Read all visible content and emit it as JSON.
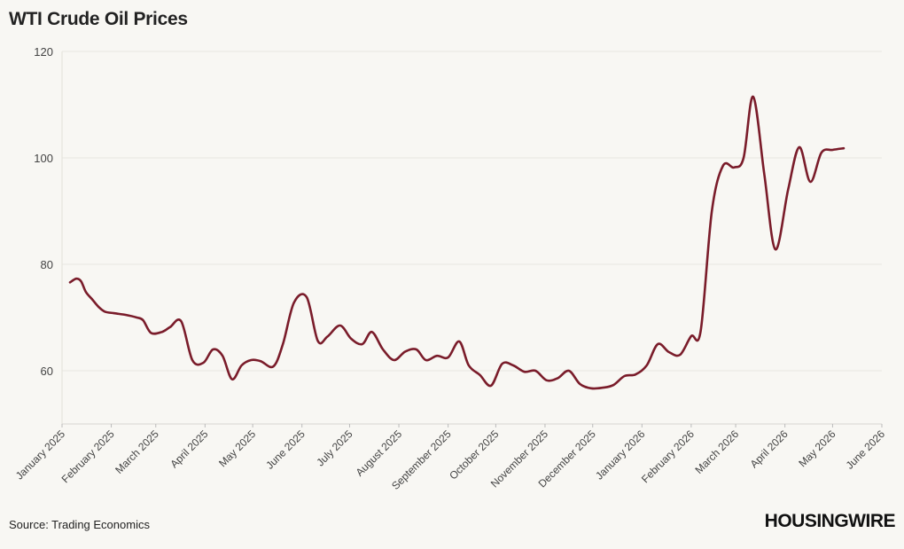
{
  "chart_data": {
    "type": "line",
    "title": "WTI Crude Oil Prices",
    "xlabel": "",
    "ylabel": "",
    "ylim": [
      50,
      120
    ],
    "yticks": [
      60,
      80,
      100,
      120
    ],
    "xticks": [
      {
        "date": "2025-01-01",
        "label": "January 2025"
      },
      {
        "date": "2025-02-01",
        "label": "February 2025"
      },
      {
        "date": "2025-03-01",
        "label": "March 2025"
      },
      {
        "date": "2025-04-01",
        "label": "April 2025"
      },
      {
        "date": "2025-05-01",
        "label": "May 2025"
      },
      {
        "date": "2025-06-01",
        "label": "June 2025"
      },
      {
        "date": "2025-07-01",
        "label": "July 2025"
      },
      {
        "date": "2025-08-01",
        "label": "August 2025"
      },
      {
        "date": "2025-09-01",
        "label": "September 2025"
      },
      {
        "date": "2025-10-01",
        "label": "October 2025"
      },
      {
        "date": "2025-11-01",
        "label": "November 2025"
      },
      {
        "date": "2025-12-01",
        "label": "December 2025"
      },
      {
        "date": "2026-01-01",
        "label": "January 2026"
      },
      {
        "date": "2026-02-01",
        "label": "February 2026"
      },
      {
        "date": "2026-03-01",
        "label": "March 2026"
      },
      {
        "date": "2026-04-01",
        "label": "April 2026"
      },
      {
        "date": "2026-05-01",
        "label": "May 2026"
      },
      {
        "date": "2026-06-01",
        "label": "June 2026"
      }
    ],
    "grid": true,
    "legend": "none",
    "series": [
      {
        "color": "#7a1c2a",
        "points": [
          [
            "2025-01-06",
            76.6
          ],
          [
            "2025-01-10",
            77.3
          ],
          [
            "2025-01-13",
            76.8
          ],
          [
            "2025-01-16",
            74.8
          ],
          [
            "2025-01-20",
            73.4
          ],
          [
            "2025-01-24",
            72.0
          ],
          [
            "2025-01-28",
            71.1
          ],
          [
            "2025-02-03",
            70.8
          ],
          [
            "2025-02-10",
            70.5
          ],
          [
            "2025-02-17",
            70.0
          ],
          [
            "2025-02-21",
            69.5
          ],
          [
            "2025-02-26",
            67.1
          ],
          [
            "2025-03-05",
            67.3
          ],
          [
            "2025-03-10",
            68.2
          ],
          [
            "2025-03-17",
            69.3
          ],
          [
            "2025-03-24",
            62.0
          ],
          [
            "2025-03-31",
            61.5
          ],
          [
            "2025-04-06",
            64.0
          ],
          [
            "2025-04-12",
            62.8
          ],
          [
            "2025-04-18",
            58.4
          ],
          [
            "2025-04-24",
            61.0
          ],
          [
            "2025-04-30",
            62.0
          ],
          [
            "2025-05-06",
            61.8
          ],
          [
            "2025-05-14",
            60.8
          ],
          [
            "2025-05-20",
            65.0
          ],
          [
            "2025-05-27",
            72.8
          ],
          [
            "2025-06-04",
            73.8
          ],
          [
            "2025-06-11",
            65.6
          ],
          [
            "2025-06-17",
            66.4
          ],
          [
            "2025-06-25",
            68.5
          ],
          [
            "2025-07-02",
            66.0
          ],
          [
            "2025-07-09",
            65.0
          ],
          [
            "2025-07-15",
            67.3
          ],
          [
            "2025-07-22",
            64.0
          ],
          [
            "2025-07-29",
            62.0
          ],
          [
            "2025-08-05",
            63.6
          ],
          [
            "2025-08-12",
            64.0
          ],
          [
            "2025-08-18",
            62.0
          ],
          [
            "2025-08-25",
            62.8
          ],
          [
            "2025-09-01",
            62.5
          ],
          [
            "2025-09-08",
            65.5
          ],
          [
            "2025-09-14",
            61.0
          ],
          [
            "2025-09-21",
            59.2
          ],
          [
            "2025-09-28",
            57.2
          ],
          [
            "2025-10-05",
            61.3
          ],
          [
            "2025-10-12",
            61.0
          ],
          [
            "2025-10-19",
            59.8
          ],
          [
            "2025-10-26",
            60.0
          ],
          [
            "2025-11-02",
            58.2
          ],
          [
            "2025-11-09",
            58.6
          ],
          [
            "2025-11-16",
            60.0
          ],
          [
            "2025-11-23",
            57.5
          ],
          [
            "2025-11-30",
            56.7
          ],
          [
            "2025-12-07",
            56.8
          ],
          [
            "2025-12-14",
            57.3
          ],
          [
            "2025-12-21",
            59.0
          ],
          [
            "2025-12-28",
            59.3
          ],
          [
            "2026-01-04",
            61.0
          ],
          [
            "2026-01-11",
            65.0
          ],
          [
            "2026-01-18",
            63.5
          ],
          [
            "2026-01-25",
            63.0
          ],
          [
            "2026-02-01",
            66.5
          ],
          [
            "2026-02-07",
            67.5
          ],
          [
            "2026-02-14",
            90.0
          ],
          [
            "2026-02-21",
            98.5
          ],
          [
            "2026-02-28",
            98.2
          ],
          [
            "2026-03-06",
            100.0
          ],
          [
            "2026-03-12",
            111.5
          ],
          [
            "2026-03-19",
            97.0
          ],
          [
            "2026-03-26",
            82.8
          ],
          [
            "2026-04-03",
            94.0
          ],
          [
            "2026-04-10",
            102.0
          ],
          [
            "2026-04-17",
            95.5
          ],
          [
            "2026-04-24",
            101.0
          ],
          [
            "2026-05-01",
            101.5
          ],
          [
            "2026-05-08",
            101.8
          ]
        ]
      }
    ]
  },
  "source_text": "Source: Trading Economics",
  "logo_text": "HOUSINGWIRE"
}
